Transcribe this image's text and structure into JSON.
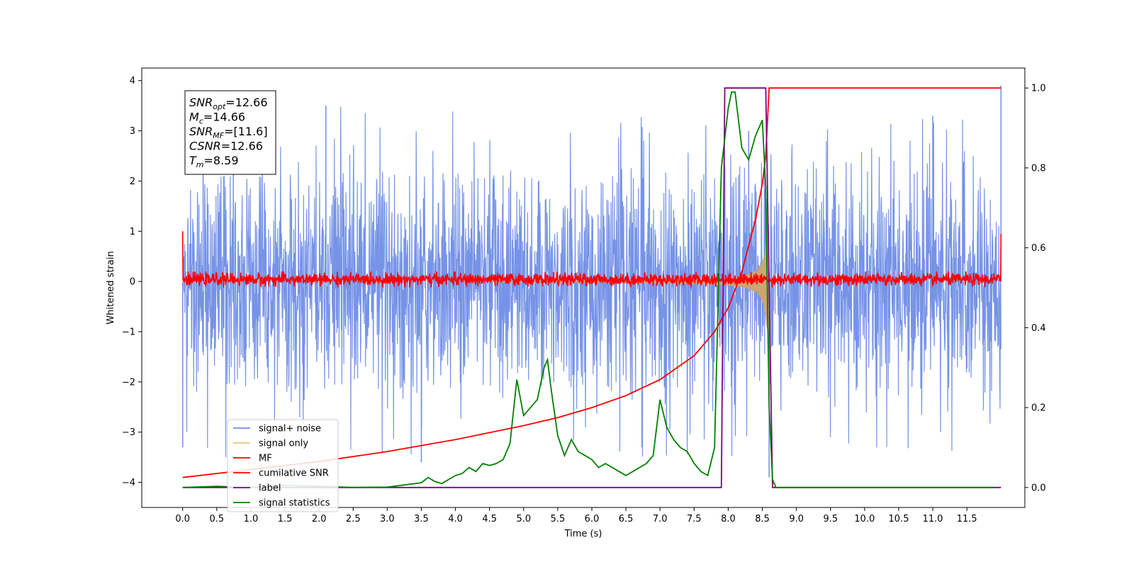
{
  "chart_data": {
    "type": "line",
    "xlabel": "Time (s)",
    "ylabel": "Whitened strain",
    "xlim": [
      -0.6,
      12.35
    ],
    "ylim": [
      -4.5,
      4.25
    ],
    "y2lim": [
      -0.05,
      1.05
    ],
    "x_ticks": [
      0.0,
      0.5,
      1.0,
      1.5,
      2.0,
      2.5,
      3.0,
      3.5,
      4.0,
      4.5,
      5.0,
      5.5,
      6.0,
      6.5,
      7.0,
      7.5,
      8.0,
      8.5,
      9.0,
      9.5,
      10.0,
      10.5,
      11.0,
      11.5
    ],
    "x_tick_labels": [
      "0.0",
      "0.5",
      "1.0",
      "1.5",
      "2.0",
      "2.5",
      "3.0",
      "3.5",
      "4.0",
      "4.5",
      "5.0",
      "5.5",
      "6.0",
      "6.5",
      "7.0",
      "7.5",
      "8.0",
      "8.5",
      "9.0",
      "9.5",
      "10.0",
      "10.5",
      "11.0",
      "11.5"
    ],
    "y_ticks": [
      -4,
      -3,
      -2,
      -1,
      0,
      1,
      2,
      3,
      4
    ],
    "y_tick_labels": [
      "−4",
      "−3",
      "−2",
      "−1",
      "0",
      "1",
      "2",
      "3",
      "4"
    ],
    "y2_ticks": [
      0.0,
      0.2,
      0.4,
      0.6,
      0.8,
      1.0
    ],
    "y2_tick_labels": [
      "0.0",
      "0.2",
      "0.4",
      "0.6",
      "0.8",
      "1.0"
    ],
    "grid": false,
    "legend_position": "lower-left",
    "series": [
      {
        "name": "signal+ noise",
        "color": "#6f8de6",
        "axis": "left",
        "kind": "noise",
        "x_range": [
          0.0,
          12.0
        ],
        "envelope_min": [
          -2.2,
          -2.3
        ],
        "envelope_max": [
          2.1,
          2.5
        ],
        "peaks": [
          [
            0.0,
            -3.3
          ],
          [
            0.3,
            3.8
          ],
          [
            2.1,
            3.5
          ],
          [
            3.5,
            -3.6
          ],
          [
            8.3,
            3.0
          ],
          [
            8.6,
            -3.9
          ],
          [
            11.0,
            3.3
          ],
          [
            12.0,
            3.9
          ]
        ]
      },
      {
        "name": "signal only",
        "color": "#f5c27a",
        "axis": "left",
        "kind": "chirp",
        "x_range": [
          4.5,
          8.6
        ],
        "peak_amplitude": 1.0
      },
      {
        "name": "MF",
        "color": "#ff0000",
        "axis": "left",
        "kind": "mf",
        "x_range": [
          0.0,
          12.0
        ],
        "band": [
          -0.12,
          0.2
        ],
        "endpoints": [
          [
            0.0,
            1.0
          ],
          [
            12.0,
            0.95
          ]
        ]
      },
      {
        "name": "cumilative SNR",
        "color": "#ff0000",
        "axis": "right",
        "x": [
          0.0,
          1.0,
          2.0,
          3.0,
          4.0,
          5.0,
          5.5,
          6.0,
          6.5,
          7.0,
          7.5,
          7.8,
          8.0,
          8.2,
          8.4,
          8.5,
          8.55,
          8.6,
          8.6,
          12.0
        ],
        "y": [
          0.025,
          0.045,
          0.065,
          0.09,
          0.12,
          0.155,
          0.175,
          0.2,
          0.23,
          0.27,
          0.33,
          0.39,
          0.45,
          0.54,
          0.67,
          0.76,
          0.83,
          1.0,
          1.0,
          1.0
        ]
      },
      {
        "name": "label",
        "color": "#800080",
        "axis": "right",
        "x": [
          0.0,
          7.9,
          7.95,
          8.55,
          8.6,
          8.65,
          12.0
        ],
        "y": [
          0.0,
          0.0,
          1.0,
          1.0,
          0.5,
          0.0,
          0.0
        ]
      },
      {
        "name": "signal statistics",
        "color": "#008000",
        "axis": "right",
        "x": [
          0.0,
          0.5,
          1.0,
          1.5,
          2.0,
          2.5,
          3.0,
          3.5,
          3.6,
          3.7,
          3.8,
          4.0,
          4.1,
          4.2,
          4.3,
          4.4,
          4.5,
          4.6,
          4.7,
          4.8,
          4.9,
          5.0,
          5.1,
          5.2,
          5.3,
          5.35,
          5.4,
          5.5,
          5.6,
          5.7,
          5.8,
          5.9,
          6.0,
          6.1,
          6.2,
          6.3,
          6.4,
          6.5,
          6.6,
          6.7,
          6.8,
          6.9,
          7.0,
          7.1,
          7.2,
          7.3,
          7.4,
          7.5,
          7.6,
          7.7,
          7.8,
          7.85,
          7.9,
          8.0,
          8.05,
          8.1,
          8.2,
          8.3,
          8.4,
          8.5,
          8.55,
          8.6,
          8.65,
          8.7,
          9.0,
          10.0,
          11.0,
          11.9
        ],
        "y": [
          0.0,
          0.003,
          0.0,
          0.005,
          0.003,
          0.0,
          0.001,
          0.012,
          0.025,
          0.015,
          0.01,
          0.03,
          0.035,
          0.05,
          0.04,
          0.06,
          0.055,
          0.06,
          0.07,
          0.11,
          0.27,
          0.18,
          0.2,
          0.22,
          0.3,
          0.32,
          0.25,
          0.13,
          0.08,
          0.12,
          0.09,
          0.08,
          0.07,
          0.05,
          0.06,
          0.05,
          0.04,
          0.03,
          0.04,
          0.05,
          0.06,
          0.08,
          0.22,
          0.15,
          0.12,
          0.1,
          0.09,
          0.06,
          0.04,
          0.03,
          0.1,
          0.45,
          0.8,
          0.95,
          0.99,
          0.99,
          0.85,
          0.82,
          0.88,
          0.92,
          0.75,
          0.2,
          0.02,
          0.0,
          0.0,
          0.0,
          0.0,
          0.0
        ]
      }
    ]
  },
  "info_box": {
    "lines": [
      {
        "main": "SNR",
        "sub": "opt",
        "rest": "=12.66"
      },
      {
        "main": "M",
        "sub": "c",
        "rest": "=14.66"
      },
      {
        "main": "SNR",
        "sub": "MF",
        "rest": "=[11.6]"
      },
      {
        "main": "CSNR",
        "sub": "",
        "rest": "=12.66"
      },
      {
        "main": "T",
        "sub": "m",
        "rest": "=8.59"
      }
    ]
  }
}
